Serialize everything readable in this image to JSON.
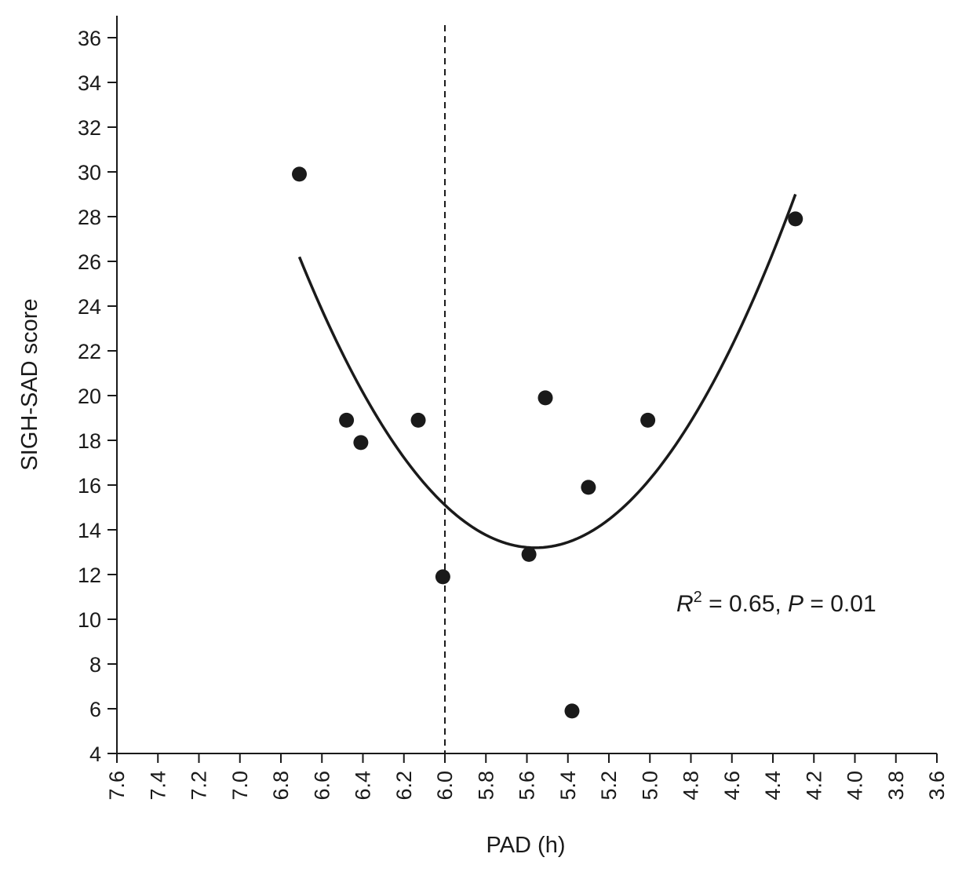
{
  "chart_data": {
    "type": "scatter",
    "xlabel": "PAD (h)",
    "ylabel": "SIGH-SAD score",
    "xlim": [
      7.6,
      3.6
    ],
    "x_reversed": true,
    "ylim": [
      4,
      36
    ],
    "x_ticks": [
      "7.6",
      "7.4",
      "7.2",
      "7.0",
      "6.8",
      "6.6",
      "6.4",
      "6.2",
      "6.0",
      "5.8",
      "5.6",
      "5.4",
      "5.2",
      "5.0",
      "4.8",
      "4.6",
      "4.4",
      "4.2",
      "4.0",
      "3.8",
      "3.6"
    ],
    "y_ticks": [
      "4",
      "6",
      "8",
      "10",
      "12",
      "14",
      "16",
      "18",
      "20",
      "22",
      "24",
      "26",
      "28",
      "30",
      "32",
      "34",
      "36"
    ],
    "grid": false,
    "series": [
      {
        "values": [
          {
            "x": 6.71,
            "y": 29.9
          },
          {
            "x": 6.48,
            "y": 18.9
          },
          {
            "x": 6.41,
            "y": 17.9
          },
          {
            "x": 6.13,
            "y": 18.9
          },
          {
            "x": 6.01,
            "y": 11.9
          },
          {
            "x": 5.59,
            "y": 12.9
          },
          {
            "x": 5.51,
            "y": 19.9
          },
          {
            "x": 5.38,
            "y": 5.9
          },
          {
            "x": 5.3,
            "y": 15.9
          },
          {
            "x": 5.01,
            "y": 18.9
          },
          {
            "x": 4.29,
            "y": 27.9
          }
        ]
      }
    ],
    "fit_curve": {
      "type": "quadratic",
      "x_range": [
        6.71,
        4.29
      ],
      "points": [
        {
          "x": 6.71,
          "y": 26.2
        },
        {
          "x": 5.575,
          "y": 13.2
        },
        {
          "x": 4.29,
          "y": 29.0
        }
      ]
    },
    "reference_line": {
      "x": 6.0,
      "style": "dashed"
    },
    "annotation": {
      "r_symbol": "R",
      "r_exponent": "2",
      "r_text": " = 0.65, ",
      "p_symbol": "P",
      "p_text": " = 0.01"
    }
  }
}
